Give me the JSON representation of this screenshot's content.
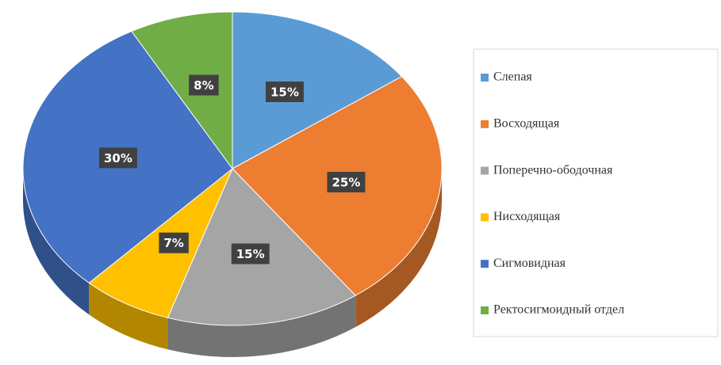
{
  "chart_data": {
    "type": "pie",
    "categories": [
      "Слепая",
      "Восходящая",
      "Поперечно-ободочная",
      "Нисходящая",
      "Сигмовидная",
      "Ректосигмоидный  отдел"
    ],
    "values": [
      15,
      25,
      15,
      7,
      30,
      8
    ],
    "value_labels": [
      "15%",
      "25%",
      "15%",
      "7%",
      "30%",
      "8%"
    ],
    "colors": [
      "#5b9bd5",
      "#ed7d31",
      "#a5a5a5",
      "#ffc000",
      "#4472c4",
      "#70ad47"
    ],
    "legend": "right"
  }
}
